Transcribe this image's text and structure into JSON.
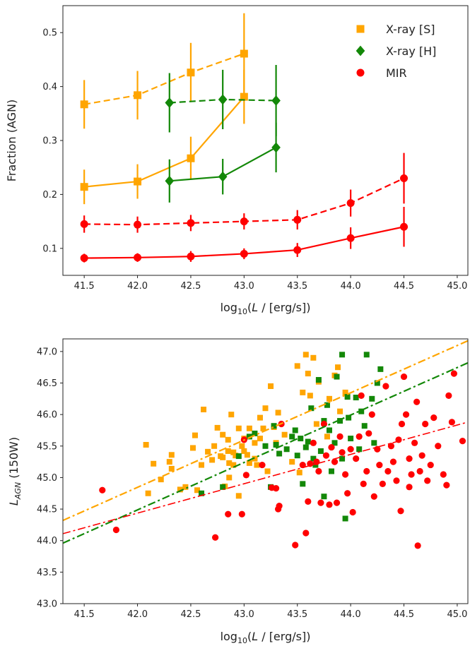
{
  "chart_data": [
    {
      "type": "line",
      "xlabel": "log10(L / [erg/s])",
      "ylabel": "Fraction (AGN)",
      "xlim": [
        41.3,
        45.1
      ],
      "ylim": [
        0.05,
        0.55
      ],
      "xticks": [
        "41.5",
        "42.0",
        "42.5",
        "43.0",
        "43.5",
        "44.0",
        "44.5",
        "45.0"
      ],
      "yticks": [
        "0.1",
        "0.2",
        "0.3",
        "0.4",
        "0.5"
      ],
      "legend": {
        "placement": "top-right",
        "entries": [
          {
            "label": "X-ray [S]",
            "color": "#FFA500",
            "marker": "square"
          },
          {
            "label": "X-ray [H]",
            "color": "#138808",
            "marker": "diamond"
          },
          {
            "label": "MIR",
            "color": "#FF0000",
            "marker": "circle"
          }
        ]
      },
      "series": [
        {
          "group": "X-ray [S]",
          "style": "dashed",
          "color": "#FFA500",
          "marker": "square",
          "x": [
            41.5,
            42.0,
            42.5,
            43.0
          ],
          "y": [
            0.367,
            0.384,
            0.426,
            0.461
          ],
          "err": [
            0.045,
            0.045,
            0.055,
            0.075
          ]
        },
        {
          "group": "X-ray [S]",
          "style": "solid",
          "color": "#FFA500",
          "marker": "square",
          "x": [
            41.5,
            42.0,
            42.5,
            43.0
          ],
          "y": [
            0.214,
            0.224,
            0.267,
            0.381
          ],
          "err": [
            0.032,
            0.032,
            0.04,
            0.05
          ]
        },
        {
          "group": "X-ray [H]",
          "style": "dashed",
          "color": "#138808",
          "marker": "diamond",
          "x": [
            42.3,
            42.8,
            43.3
          ],
          "y": [
            0.37,
            0.376,
            0.374
          ],
          "err": [
            0.055,
            0.055,
            0.066
          ]
        },
        {
          "group": "X-ray [H]",
          "style": "solid",
          "color": "#138808",
          "marker": "diamond",
          "x": [
            42.3,
            42.8,
            43.3
          ],
          "y": [
            0.225,
            0.233,
            0.287
          ],
          "err": [
            0.04,
            0.033,
            0.046
          ]
        },
        {
          "group": "MIR",
          "style": "dashed",
          "color": "#FF0000",
          "marker": "circle",
          "x": [
            41.5,
            42.0,
            42.5,
            43.0,
            43.5,
            44.0,
            44.5
          ],
          "y": [
            0.145,
            0.144,
            0.147,
            0.15,
            0.153,
            0.184,
            0.23
          ],
          "err": [
            0.016,
            0.015,
            0.015,
            0.015,
            0.018,
            0.025,
            0.047
          ]
        },
        {
          "group": "MIR",
          "style": "solid",
          "color": "#FF0000",
          "marker": "circle",
          "x": [
            41.5,
            42.0,
            42.5,
            43.0,
            43.5,
            44.0,
            44.5
          ],
          "y": [
            0.082,
            0.083,
            0.085,
            0.09,
            0.097,
            0.119,
            0.14
          ],
          "err": [
            0.008,
            0.008,
            0.01,
            0.01,
            0.013,
            0.02,
            0.037
          ]
        }
      ]
    },
    {
      "type": "scatter",
      "xlabel": "log10(L / [erg/s])",
      "ylabel": "L_AGN (150W)",
      "xlim": [
        41.3,
        45.1
      ],
      "ylim": [
        43.0,
        47.2
      ],
      "xticks": [
        "41.5",
        "42.0",
        "42.5",
        "43.0",
        "43.5",
        "44.0",
        "44.5",
        "45.0"
      ],
      "yticks": [
        "43.0",
        "43.5",
        "44.0",
        "44.5",
        "45.0",
        "45.5",
        "46.0",
        "46.5",
        "47.0"
      ],
      "fit_lines": [
        {
          "group": "X-ray [S]",
          "color": "#FFA500",
          "x": [
            41.3,
            45.1
          ],
          "y": [
            44.32,
            47.17
          ]
        },
        {
          "group": "X-ray [H]",
          "color": "#138808",
          "x": [
            41.3,
            45.1
          ],
          "y": [
            43.96,
            46.82
          ]
        },
        {
          "group": "MIR",
          "color": "#FF0000",
          "x": [
            41.3,
            45.1
          ],
          "y": [
            44.11,
            45.88
          ]
        }
      ],
      "series": [
        {
          "group": "X-ray [S]",
          "color": "#FFA500",
          "marker": "square",
          "points": [
            [
              42.08,
              45.52
            ],
            [
              42.1,
              44.75
            ],
            [
              42.15,
              45.22
            ],
            [
              42.22,
              44.97
            ],
            [
              42.3,
              45.25
            ],
            [
              42.32,
              45.36
            ],
            [
              42.32,
              45.14
            ],
            [
              42.4,
              44.81
            ],
            [
              42.45,
              44.85
            ],
            [
              42.52,
              45.47
            ],
            [
              42.54,
              45.67
            ],
            [
              42.56,
              44.8
            ],
            [
              42.6,
              45.2
            ],
            [
              42.62,
              46.08
            ],
            [
              42.66,
              45.41
            ],
            [
              42.7,
              45.28
            ],
            [
              42.72,
              45.5
            ],
            [
              42.75,
              45.79
            ],
            [
              42.78,
              45.34
            ],
            [
              42.8,
              45.68
            ],
            [
              42.8,
              45.32
            ],
            [
              42.82,
              44.86
            ],
            [
              42.85,
              45.42
            ],
            [
              42.85,
              45.6
            ],
            [
              42.86,
              45.0
            ],
            [
              42.86,
              45.23
            ],
            [
              42.88,
              46.0
            ],
            [
              42.9,
              45.4
            ],
            [
              42.9,
              45.2
            ],
            [
              42.92,
              45.35
            ],
            [
              42.95,
              45.78
            ],
            [
              42.95,
              44.71
            ],
            [
              42.98,
              45.5
            ],
            [
              43.0,
              45.62
            ],
            [
              43.0,
              45.42
            ],
            [
              43.03,
              45.36
            ],
            [
              43.05,
              45.78
            ],
            [
              43.05,
              45.23
            ],
            [
              43.1,
              45.55
            ],
            [
              43.1,
              45.3
            ],
            [
              43.12,
              45.2
            ],
            [
              43.15,
              45.95
            ],
            [
              43.15,
              45.62
            ],
            [
              43.18,
              45.78
            ],
            [
              43.2,
              46.1
            ],
            [
              43.22,
              45.1
            ],
            [
              43.25,
              46.45
            ],
            [
              43.28,
              45.8
            ],
            [
              43.3,
              45.55
            ],
            [
              43.32,
              46.03
            ],
            [
              43.38,
              45.68
            ],
            [
              43.45,
              45.25
            ],
            [
              43.5,
              46.77
            ],
            [
              43.52,
              45.08
            ],
            [
              43.55,
              46.35
            ],
            [
              43.58,
              46.95
            ],
            [
              43.6,
              46.65
            ],
            [
              43.62,
              46.3
            ],
            [
              43.65,
              46.9
            ],
            [
              43.68,
              45.85
            ],
            [
              43.7,
              46.52
            ],
            [
              43.78,
              45.65
            ],
            [
              43.8,
              46.25
            ],
            [
              43.85,
              46.62
            ],
            [
              43.88,
              46.75
            ],
            [
              43.9,
              46.05
            ],
            [
              43.95,
              46.35
            ]
          ]
        },
        {
          "group": "X-ray [H]",
          "color": "#138808",
          "marker": "square",
          "points": [
            [
              42.6,
              44.75
            ],
            [
              42.8,
              44.85
            ],
            [
              42.95,
              45.34
            ],
            [
              43.05,
              45.65
            ],
            [
              43.1,
              45.7
            ],
            [
              43.2,
              45.5
            ],
            [
              43.25,
              44.85
            ],
            [
              43.28,
              45.82
            ],
            [
              43.3,
              45.52
            ],
            [
              43.33,
              45.38
            ],
            [
              43.4,
              45.45
            ],
            [
              43.45,
              45.65
            ],
            [
              43.48,
              45.75
            ],
            [
              43.5,
              45.35
            ],
            [
              43.53,
              45.62
            ],
            [
              43.55,
              44.9
            ],
            [
              43.58,
              45.48
            ],
            [
              43.6,
              45.57
            ],
            [
              43.63,
              46.1
            ],
            [
              43.65,
              45.3
            ],
            [
              43.67,
              45.2
            ],
            [
              43.7,
              46.55
            ],
            [
              43.72,
              45.42
            ],
            [
              43.75,
              45.9
            ],
            [
              43.75,
              44.7
            ],
            [
              43.78,
              46.15
            ],
            [
              43.8,
              45.75
            ],
            [
              43.82,
              45.1
            ],
            [
              43.85,
              45.55
            ],
            [
              43.87,
              46.6
            ],
            [
              43.9,
              45.9
            ],
            [
              43.92,
              45.3
            ],
            [
              43.95,
              44.35
            ],
            [
              43.97,
              46.28
            ],
            [
              44.0,
              45.62
            ],
            [
              44.05,
              46.27
            ],
            [
              44.08,
              45.45
            ],
            [
              44.1,
              46.05
            ],
            [
              44.13,
              45.82
            ],
            [
              44.15,
              46.95
            ],
            [
              44.2,
              46.25
            ],
            [
              44.22,
              45.55
            ],
            [
              44.25,
              46.5
            ],
            [
              44.28,
              46.72
            ],
            [
              43.92,
              46.95
            ],
            [
              43.98,
              45.95
            ]
          ]
        },
        {
          "group": "MIR",
          "color": "#FF0000",
          "marker": "circle",
          "points": [
            [
              41.67,
              44.8
            ],
            [
              41.8,
              44.17
            ],
            [
              42.73,
              44.05
            ],
            [
              42.85,
              44.42
            ],
            [
              42.98,
              44.42
            ],
            [
              43.0,
              45.6
            ],
            [
              43.02,
              45.04
            ],
            [
              43.17,
              45.2
            ],
            [
              43.26,
              44.84
            ],
            [
              43.3,
              44.83
            ],
            [
              43.32,
              44.5
            ],
            [
              43.33,
              44.55
            ],
            [
              43.35,
              45.85
            ],
            [
              43.48,
              43.93
            ],
            [
              43.55,
              45.2
            ],
            [
              43.58,
              44.12
            ],
            [
              43.6,
              44.62
            ],
            [
              43.62,
              45.22
            ],
            [
              43.65,
              45.55
            ],
            [
              43.68,
              45.25
            ],
            [
              43.7,
              45.1
            ],
            [
              43.72,
              44.6
            ],
            [
              43.75,
              45.85
            ],
            [
              43.77,
              45.35
            ],
            [
              43.8,
              44.57
            ],
            [
              43.82,
              45.48
            ],
            [
              43.85,
              45.25
            ],
            [
              43.87,
              44.6
            ],
            [
              43.9,
              45.65
            ],
            [
              43.92,
              45.4
            ],
            [
              43.95,
              45.05
            ],
            [
              43.97,
              44.75
            ],
            [
              44.0,
              45.45
            ],
            [
              44.02,
              44.45
            ],
            [
              44.05,
              45.3
            ],
            [
              44.08,
              45.65
            ],
            [
              44.1,
              46.3
            ],
            [
              44.12,
              44.9
            ],
            [
              44.15,
              45.1
            ],
            [
              44.17,
              45.7
            ],
            [
              44.2,
              46.0
            ],
            [
              44.22,
              44.7
            ],
            [
              44.25,
              45.45
            ],
            [
              44.27,
              45.2
            ],
            [
              44.3,
              44.9
            ],
            [
              44.33,
              46.45
            ],
            [
              44.35,
              45.1
            ],
            [
              44.38,
              45.5
            ],
            [
              44.4,
              45.25
            ],
            [
              44.43,
              44.95
            ],
            [
              44.45,
              45.6
            ],
            [
              44.47,
              44.47
            ],
            [
              44.5,
              46.6
            ],
            [
              44.52,
              46.0
            ],
            [
              44.55,
              45.3
            ],
            [
              44.57,
              45.05
            ],
            [
              44.6,
              45.55
            ],
            [
              44.62,
              46.2
            ],
            [
              44.63,
              43.92
            ],
            [
              44.65,
              45.1
            ],
            [
              44.67,
              45.35
            ],
            [
              44.7,
              45.85
            ],
            [
              44.72,
              44.95
            ],
            [
              44.75,
              45.2
            ],
            [
              44.78,
              45.95
            ],
            [
              44.82,
              45.5
            ],
            [
              44.87,
              45.05
            ],
            [
              44.9,
              44.88
            ],
            [
              44.92,
              46.3
            ],
            [
              44.95,
              45.88
            ],
            [
              44.97,
              46.65
            ],
            [
              45.05,
              45.58
            ],
            [
              44.48,
              45.85
            ],
            [
              44.55,
              44.85
            ]
          ]
        }
      ]
    }
  ]
}
